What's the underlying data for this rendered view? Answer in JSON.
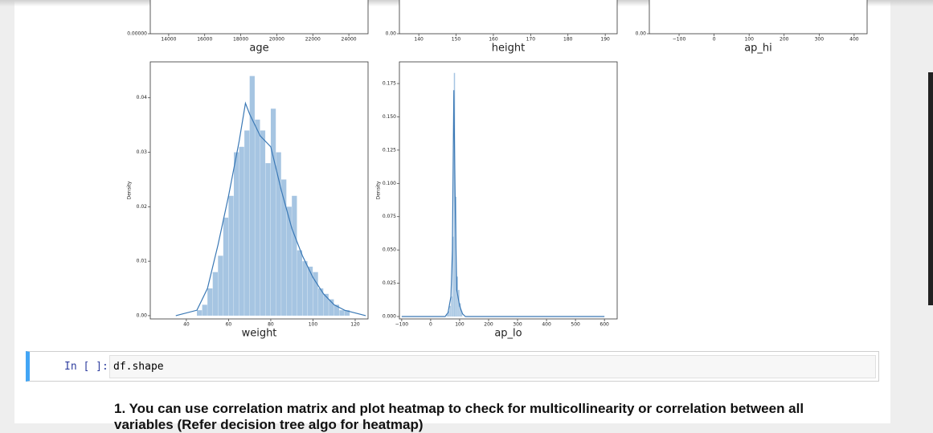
{
  "chart_data": [
    {
      "type": "histogram",
      "xlabel": "age",
      "xlim": [
        12978,
        25067
      ],
      "xticks": [
        14000,
        16000,
        18000,
        20000,
        22000,
        24000
      ],
      "yticks": [
        {
          "value": 0,
          "label": "0.00000"
        }
      ]
    },
    {
      "type": "histogram",
      "xlabel": "height",
      "xlim": [
        134.8,
        193.2
      ],
      "xticks": [
        140,
        150,
        160,
        170,
        180,
        190
      ],
      "yticks": [
        {
          "value": 0,
          "label": "0.00"
        }
      ]
    },
    {
      "type": "histogram",
      "xlabel": "ap_hi",
      "xlim": [
        -185,
        437
      ],
      "xticks": [
        {
          "value": -100,
          "label": "−100"
        },
        0,
        100,
        200,
        300,
        400
      ],
      "yticks": [
        {
          "value": 0,
          "label": "0.00"
        }
      ]
    },
    {
      "type": "histogram",
      "xlabel": "weight",
      "ylabel": "Density",
      "color": "#a6c5e2",
      "xlim": [
        22.9,
        126.1
      ],
      "ylim": [
        -0.0006,
        0.0466
      ],
      "xticks": [
        40,
        60,
        80,
        100,
        120
      ],
      "yticks": [
        {
          "value": 0,
          "label": "0.00"
        },
        0.01,
        0.02,
        0.03,
        0.04
      ],
      "bins": [
        45,
        47.5,
        50,
        52.5,
        55,
        57.5,
        60,
        62.5,
        65,
        67.5,
        70,
        72.5,
        75,
        77.5,
        80,
        82.5,
        85,
        87.5,
        90,
        92.5,
        95,
        97.5,
        100,
        102.5,
        105,
        107.5,
        110,
        112.5,
        115,
        117.5
      ],
      "values": [
        0.001,
        0.002,
        0.005,
        0.008,
        0.011,
        0.018,
        0.022,
        0.03,
        0.031,
        0.034,
        0.044,
        0.036,
        0.034,
        0.028,
        0.038,
        0.03,
        0.025,
        0.02,
        0.022,
        0.012,
        0.01,
        0.009,
        0.008,
        0.005,
        0.004,
        0.003,
        0.002,
        0.001,
        0.001
      ],
      "line": {
        "color": "#3a78b5",
        "x": [
          35,
          45,
          50,
          55,
          60,
          65,
          68,
          70,
          75,
          80,
          85,
          90,
          95,
          100,
          105,
          110,
          115,
          125
        ],
        "values": [
          0,
          0.001,
          0.005,
          0.013,
          0.022,
          0.032,
          0.039,
          0.037,
          0.033,
          0.031,
          0.023,
          0.016,
          0.011,
          0.007,
          0.004,
          0.002,
          0.001,
          0
        ]
      }
    },
    {
      "type": "histogram",
      "xlabel": "ap_lo",
      "ylabel": "Density",
      "color": "#a6c5e2",
      "xlim": [
        -108,
        644
      ],
      "ylim": [
        -0.0018,
        0.1913
      ],
      "xticks": [
        {
          "value": -100,
          "label": "−100"
        },
        0,
        100,
        200,
        300,
        400,
        500,
        600
      ],
      "yticks": [
        {
          "value": 0,
          "label": "0.000"
        },
        0.025,
        {
          "value": 0.05,
          "label": "0.050"
        },
        0.075,
        {
          "value": 0.1,
          "label": "0.100"
        },
        0.125,
        {
          "value": 0.15,
          "label": "0.150"
        },
        0.175
      ],
      "bins": [
        55,
        60,
        65,
        70,
        75,
        80,
        85,
        90,
        95,
        100,
        105,
        110
      ],
      "values": [
        0.002,
        0.004,
        0.008,
        0.015,
        0.06,
        0.183,
        0.09,
        0.03,
        0.02,
        0.01,
        0.004
      ],
      "line": {
        "color": "#3a78b5",
        "x": [
          -100,
          50,
          60,
          70,
          75,
          80,
          85,
          90,
          100,
          110,
          120,
          600
        ],
        "values": [
          0,
          0,
          0.003,
          0.015,
          0.05,
          0.17,
          0.08,
          0.02,
          0.008,
          0.002,
          0,
          0
        ]
      }
    }
  ],
  "cell": {
    "prompt": "In [ ]:",
    "code": "df.shape"
  },
  "markdown": {
    "line1": "1. You can use correlation matrix and plot heatmap to check for multicollinearity or correlation between all",
    "line2": "variables (Refer decision tree algo for heatmap)"
  }
}
